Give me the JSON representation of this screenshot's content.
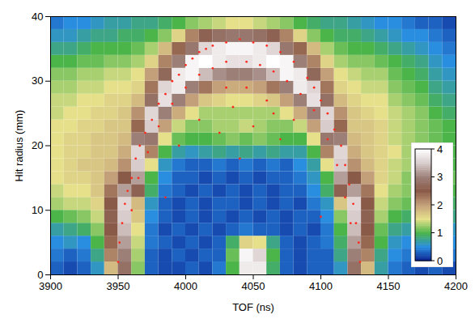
{
  "chart_data": {
    "type": "heatmap",
    "xlabel": "TOF (ns)",
    "ylabel": "Hit radius (mm)",
    "xlim": [
      3900,
      4200
    ],
    "ylim": [
      0,
      40
    ],
    "xticks": [
      3900,
      3950,
      4000,
      4050,
      4100,
      4150,
      4200
    ],
    "yticks": [
      0,
      10,
      20,
      30,
      40
    ],
    "cells": {
      "x_edges": [
        3900,
        3910,
        3920,
        3930,
        3940,
        3950,
        3960,
        3970,
        3980,
        3990,
        4000,
        4010,
        4020,
        4030,
        4040,
        4050,
        4060,
        4070,
        4080,
        4090,
        4100,
        4110,
        4120,
        4130,
        4140,
        4150,
        4160,
        4170,
        4180,
        4190,
        4200
      ],
      "y_edges": [
        0,
        2,
        4,
        6,
        8,
        10,
        12,
        14,
        16,
        18,
        20,
        22,
        24,
        26,
        28,
        30,
        32,
        34,
        36,
        38,
        40
      ],
      "values": [
        [
          0.3,
          0.2,
          0.3,
          0.6,
          1.8,
          2.8,
          1.2,
          0.3,
          0.2,
          0.2,
          0.3,
          0.2,
          0.4,
          1.0,
          3.8,
          3.8,
          0.9,
          0.3,
          0.2,
          0.3,
          0.3,
          0.6,
          2.8,
          1.8,
          0.7,
          0.4,
          0.3,
          0.2,
          0.3,
          0.2
        ],
        [
          0.4,
          0.3,
          0.4,
          0.8,
          2.2,
          3.0,
          1.3,
          0.3,
          0.2,
          0.3,
          0.2,
          0.3,
          0.3,
          1.1,
          3.9,
          3.6,
          1.0,
          0.3,
          0.2,
          0.3,
          0.3,
          0.8,
          3.0,
          2.2,
          0.8,
          0.5,
          0.4,
          0.3,
          0.5,
          0.4
        ],
        [
          0.5,
          0.6,
          0.5,
          1.0,
          2.4,
          3.2,
          1.4,
          0.4,
          0.3,
          0.2,
          0.3,
          0.2,
          0.3,
          0.9,
          1.6,
          1.5,
          0.8,
          0.3,
          0.2,
          0.3,
          0.4,
          0.9,
          3.2,
          2.4,
          1.0,
          0.6,
          0.5,
          0.5,
          0.6,
          0.5
        ],
        [
          0.7,
          0.8,
          0.9,
          1.2,
          2.5,
          3.4,
          1.5,
          0.4,
          0.2,
          0.3,
          0.2,
          0.3,
          0.2,
          0.3,
          0.4,
          0.3,
          0.3,
          0.2,
          0.3,
          0.2,
          0.4,
          1.0,
          3.4,
          2.5,
          1.1,
          0.8,
          0.7,
          0.8,
          0.7,
          0.6
        ],
        [
          1.0,
          1.1,
          1.2,
          1.4,
          2.6,
          3.5,
          1.7,
          0.5,
          0.3,
          0.2,
          0.3,
          0.2,
          0.3,
          0.2,
          0.3,
          0.2,
          0.3,
          0.2,
          0.3,
          0.3,
          0.5,
          1.2,
          3.5,
          2.6,
          1.3,
          1.0,
          0.9,
          0.9,
          1.0,
          0.8
        ],
        [
          1.3,
          1.4,
          1.4,
          1.6,
          2.5,
          3.6,
          1.8,
          0.6,
          0.3,
          0.2,
          0.3,
          0.2,
          0.3,
          0.3,
          0.2,
          0.3,
          0.2,
          0.3,
          0.2,
          0.4,
          0.6,
          1.7,
          3.6,
          2.5,
          1.4,
          1.2,
          1.1,
          1.0,
          1.1,
          0.9
        ],
        [
          1.4,
          1.5,
          1.5,
          1.7,
          2.3,
          3.2,
          2.6,
          0.9,
          0.4,
          0.3,
          0.2,
          0.3,
          0.2,
          0.3,
          0.2,
          0.3,
          0.2,
          0.3,
          0.3,
          0.5,
          0.9,
          2.6,
          3.2,
          2.3,
          1.5,
          1.3,
          1.2,
          1.1,
          1.2,
          1.0
        ],
        [
          1.5,
          1.6,
          1.6,
          1.7,
          2.0,
          2.5,
          3.2,
          1.0,
          0.5,
          0.3,
          0.3,
          0.2,
          0.3,
          0.2,
          0.3,
          0.2,
          0.3,
          0.3,
          0.4,
          0.6,
          1.0,
          3.2,
          2.5,
          2.0,
          1.6,
          1.4,
          1.2,
          1.2,
          1.1,
          1.1
        ],
        [
          1.5,
          1.6,
          1.7,
          1.7,
          1.8,
          2.1,
          3.5,
          1.5,
          0.6,
          0.4,
          0.3,
          0.3,
          0.4,
          0.3,
          0.4,
          0.3,
          0.4,
          0.3,
          0.5,
          0.7,
          1.5,
          3.5,
          2.1,
          1.8,
          1.6,
          1.4,
          1.3,
          1.2,
          1.1,
          1.0
        ],
        [
          1.5,
          1.6,
          1.6,
          1.7,
          1.7,
          1.9,
          3.6,
          2.2,
          1.0,
          0.7,
          0.6,
          0.7,
          0.8,
          0.7,
          0.8,
          0.7,
          0.8,
          0.7,
          0.7,
          1.0,
          2.2,
          3.6,
          1.9,
          1.7,
          1.6,
          1.5,
          1.3,
          1.2,
          1.1,
          1.0
        ],
        [
          1.5,
          1.6,
          1.6,
          1.7,
          1.7,
          1.8,
          3.0,
          2.9,
          1.5,
          1.1,
          1.0,
          1.0,
          1.1,
          1.2,
          1.1,
          1.2,
          1.1,
          1.0,
          1.0,
          1.5,
          2.9,
          3.0,
          1.8,
          1.7,
          1.6,
          1.4,
          1.3,
          1.2,
          1.1,
          1.0
        ],
        [
          1.5,
          1.5,
          1.6,
          1.6,
          1.7,
          1.7,
          2.4,
          3.5,
          2.0,
          1.4,
          1.2,
          1.2,
          1.3,
          1.3,
          1.4,
          1.3,
          1.2,
          1.2,
          1.4,
          2.0,
          3.5,
          2.4,
          1.7,
          1.7,
          1.6,
          1.4,
          1.3,
          1.2,
          1.1,
          1.0
        ],
        [
          1.4,
          1.5,
          1.5,
          1.6,
          1.6,
          1.7,
          2.1,
          3.6,
          3.0,
          1.9,
          1.5,
          1.3,
          1.3,
          1.3,
          1.3,
          1.3,
          1.3,
          1.5,
          1.9,
          3.0,
          3.6,
          2.1,
          1.7,
          1.6,
          1.5,
          1.4,
          1.3,
          1.2,
          1.0,
          0.9
        ],
        [
          1.4,
          1.4,
          1.5,
          1.5,
          1.6,
          1.6,
          1.8,
          2.8,
          3.7,
          3.0,
          2.0,
          1.7,
          1.6,
          1.5,
          1.5,
          1.6,
          1.7,
          2.0,
          3.0,
          3.7,
          2.8,
          1.8,
          1.6,
          1.5,
          1.5,
          1.3,
          1.2,
          1.1,
          0.9,
          0.8
        ],
        [
          1.3,
          1.3,
          1.4,
          1.4,
          1.5,
          1.5,
          1.6,
          2.3,
          3.6,
          3.8,
          3.0,
          2.3,
          2.0,
          1.9,
          1.9,
          2.0,
          2.3,
          3.0,
          3.8,
          3.6,
          2.3,
          1.6,
          1.5,
          1.4,
          1.4,
          1.2,
          1.1,
          1.0,
          0.8,
          0.7
        ],
        [
          1.2,
          1.2,
          1.3,
          1.3,
          1.4,
          1.4,
          1.5,
          2.0,
          2.7,
          3.8,
          3.9,
          3.4,
          3.1,
          3.0,
          3.0,
          3.1,
          3.4,
          3.9,
          3.8,
          2.7,
          2.0,
          1.5,
          1.4,
          1.3,
          1.3,
          1.1,
          1.0,
          0.9,
          0.7,
          0.6
        ],
        [
          1.0,
          1.0,
          1.1,
          1.1,
          1.2,
          1.2,
          1.3,
          1.6,
          2.2,
          3.0,
          3.9,
          4.0,
          3.8,
          3.7,
          3.7,
          3.8,
          4.0,
          3.9,
          3.0,
          2.2,
          1.6,
          1.3,
          1.2,
          1.2,
          1.1,
          1.0,
          0.9,
          0.8,
          0.6,
          0.5
        ],
        [
          0.8,
          0.8,
          0.9,
          1.0,
          1.0,
          1.0,
          1.1,
          1.3,
          1.8,
          2.4,
          2.9,
          3.6,
          3.8,
          3.9,
          3.9,
          3.8,
          3.6,
          2.9,
          2.4,
          1.8,
          1.3,
          1.1,
          1.0,
          1.0,
          0.9,
          0.8,
          0.7,
          0.6,
          0.5,
          0.4
        ],
        [
          0.6,
          0.6,
          0.7,
          0.8,
          0.8,
          0.9,
          0.9,
          1.0,
          1.2,
          1.6,
          2.2,
          2.6,
          2.8,
          2.9,
          2.9,
          2.8,
          2.6,
          2.2,
          1.6,
          1.2,
          1.0,
          0.9,
          0.9,
          0.8,
          0.7,
          0.6,
          0.5,
          0.5,
          0.4,
          0.3
        ],
        [
          0.4,
          0.5,
          0.5,
          0.6,
          0.7,
          0.7,
          0.8,
          0.8,
          0.9,
          1.0,
          1.2,
          1.3,
          1.4,
          1.5,
          1.5,
          1.4,
          1.3,
          1.2,
          1.0,
          0.9,
          0.8,
          0.8,
          0.7,
          0.6,
          0.5,
          0.5,
          0.4,
          0.3,
          0.3,
          0.2
        ]
      ]
    },
    "colorbar": {
      "range": [
        0,
        4
      ],
      "ticks": [
        0,
        1,
        2,
        3,
        4
      ]
    },
    "series": [
      {
        "type": "scatter",
        "color": "#ff2a1f",
        "marker": "circle",
        "x": [
          3950,
          3951,
          3953,
          3955,
          3957,
          3960,
          3963,
          3966,
          3970,
          3975,
          3980,
          3985,
          3990,
          3995,
          4000,
          4005,
          4010,
          4015,
          4020,
          4030,
          4040,
          4050,
          4060,
          4070,
          4080,
          4090,
          4095,
          4100,
          4105,
          4110,
          4115,
          4118,
          4121,
          4124,
          4126,
          4128,
          4129,
          3960,
          3965,
          3972,
          3980,
          3990,
          4000,
          4010,
          4020,
          4030,
          4045,
          4055,
          4065,
          4075,
          4085,
          4095,
          4105,
          4112,
          4118,
          4122,
          4010,
          4025,
          4035,
          4050,
          4060,
          4070,
          3995,
          4080,
          4040,
          3985,
          4100,
          4045,
          4030,
          4065
        ],
        "y": [
          2,
          5,
          8,
          11,
          13,
          15,
          18,
          20,
          22,
          24,
          26.5,
          28,
          30,
          31,
          32.5,
          33.5,
          34.5,
          35,
          35.5,
          36,
          36.5,
          36,
          35.5,
          34.5,
          33,
          30.5,
          29,
          27,
          25,
          22.5,
          20,
          17,
          14,
          11,
          8,
          5,
          2,
          10,
          15,
          19,
          23,
          26.5,
          29,
          31,
          32,
          33,
          33,
          32.5,
          31.5,
          30,
          28,
          25.5,
          21,
          17,
          12,
          8,
          24,
          22,
          26,
          23,
          27,
          21,
          20,
          24,
          18,
          12,
          9,
          29,
          29,
          25
        ]
      }
    ]
  }
}
